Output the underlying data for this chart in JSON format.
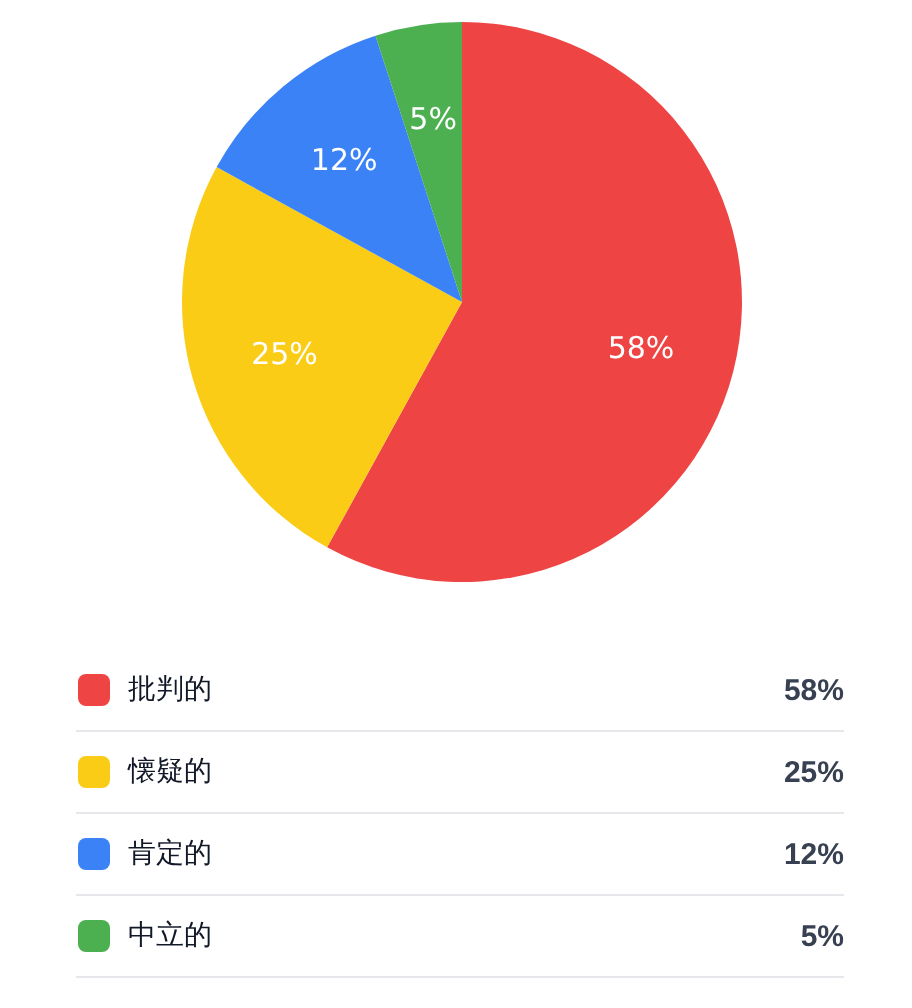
{
  "chart_data": {
    "type": "pie",
    "categories": [
      "批判的",
      "懐疑的",
      "肯定的",
      "中立的"
    ],
    "values": [
      58,
      25,
      12,
      5
    ],
    "colors": [
      "#ef4444",
      "#facc15",
      "#3b82f6",
      "#4caf50"
    ],
    "value_labels": [
      "58%",
      "25%",
      "12%",
      "5%"
    ],
    "legend": "bottom"
  }
}
